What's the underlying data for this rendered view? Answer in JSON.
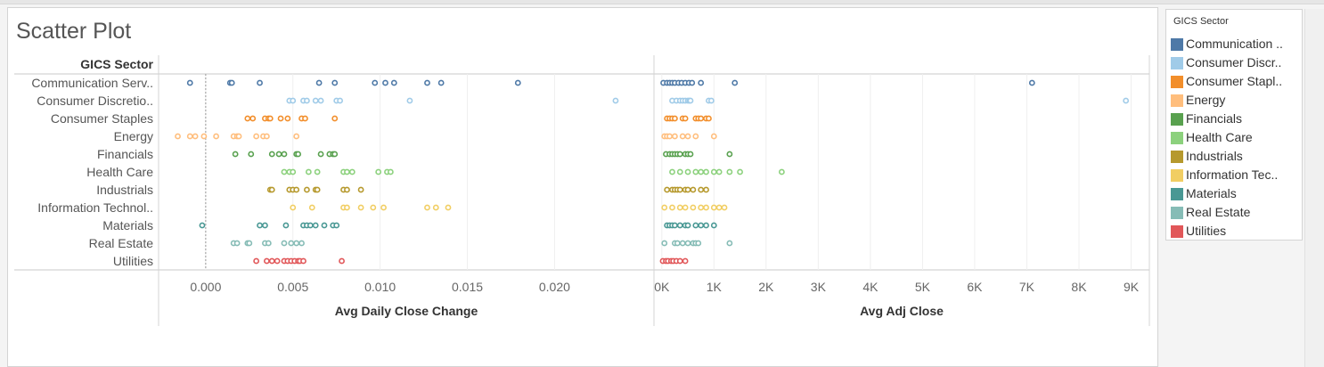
{
  "title": "Scatter Plot",
  "row_header": "GICS Sector",
  "legend": {
    "title": "GICS Sector",
    "items": [
      {
        "label": "Communication ..",
        "color": "#4e79a7"
      },
      {
        "label": "Consumer Discr..",
        "color": "#a0cbe8"
      },
      {
        "label": "Consumer Stapl..",
        "color": "#f28e2b"
      },
      {
        "label": "Energy",
        "color": "#ffbe7d"
      },
      {
        "label": "Financials",
        "color": "#59a14f"
      },
      {
        "label": "Health Care",
        "color": "#8cd17d"
      },
      {
        "label": "Industrials",
        "color": "#b6992d"
      },
      {
        "label": "Information Tec..",
        "color": "#f1ce63"
      },
      {
        "label": "Materials",
        "color": "#499894"
      },
      {
        "label": "Real Estate",
        "color": "#86bcb6"
      },
      {
        "label": "Utilities",
        "color": "#e15759"
      }
    ]
  },
  "chart_data": {
    "type": "scatter",
    "title": "Scatter Plot",
    "categories": [
      "Communication Serv..",
      "Consumer Discretio..",
      "Consumer Staples",
      "Energy",
      "Financials",
      "Health Care",
      "Industrials",
      "Information Technol..",
      "Materials",
      "Real Estate",
      "Utilities"
    ],
    "category_colors": [
      "#4e79a7",
      "#a0cbe8",
      "#f28e2b",
      "#ffbe7d",
      "#59a14f",
      "#8cd17d",
      "#b6992d",
      "#f1ce63",
      "#499894",
      "#86bcb6",
      "#e15759"
    ],
    "panels": [
      {
        "xlabel": "Avg Daily Close Change",
        "xlim": [
          -0.0027,
          0.0257
        ],
        "ticks": [
          0,
          0.005,
          0.01,
          0.015,
          0.02
        ],
        "tick_labels": [
          "0.000",
          "0.005",
          "0.010",
          "0.015",
          "0.020"
        ],
        "zero_line": true,
        "values": [
          [
            -0.0009,
            0.0014,
            0.0015,
            0.0031,
            0.0065,
            0.0074,
            0.0097,
            0.0103,
            0.0108,
            0.0127,
            0.0135,
            0.0179
          ],
          [
            0.0048,
            0.005,
            0.0056,
            0.0058,
            0.0063,
            0.0066,
            0.0075,
            0.0077,
            0.0117,
            0.0235
          ],
          [
            0.0024,
            0.0027,
            0.0034,
            0.0036,
            0.0037,
            0.0043,
            0.0047,
            0.0055,
            0.0057,
            0.0074
          ],
          [
            -0.0016,
            -0.0009,
            -0.0006,
            -0.0001,
            0.0006,
            0.0016,
            0.0018,
            0.0019,
            0.0029,
            0.0033,
            0.0035,
            0.0052
          ],
          [
            0.0017,
            0.0026,
            0.0038,
            0.0042,
            0.0045,
            0.0052,
            0.0053,
            0.0066,
            0.0071,
            0.0073,
            0.0074
          ],
          [
            0.0045,
            0.0048,
            0.005,
            0.0059,
            0.0064,
            0.0079,
            0.0081,
            0.0084,
            0.0099,
            0.0104,
            0.0106
          ],
          [
            0.0037,
            0.0038,
            0.0048,
            0.005,
            0.0052,
            0.0058,
            0.0063,
            0.0064,
            0.0079,
            0.0081,
            0.0089
          ],
          [
            0.005,
            0.0061,
            0.0079,
            0.0081,
            0.0089,
            0.0096,
            0.0102,
            0.0127,
            0.0132,
            0.0139
          ],
          [
            -0.0002,
            0.0031,
            0.0034,
            0.0046,
            0.0056,
            0.0058,
            0.006,
            0.0063,
            0.0068,
            0.0073,
            0.0075
          ],
          [
            0.0016,
            0.0018,
            0.0024,
            0.0025,
            0.0034,
            0.0036,
            0.0045,
            0.0049,
            0.0052,
            0.0055
          ],
          [
            0.0029,
            0.0035,
            0.0038,
            0.0041,
            0.0045,
            0.0047,
            0.0049,
            0.0051,
            0.0053,
            0.0054,
            0.0056,
            0.0078
          ]
        ]
      },
      {
        "xlabel": "Avg Adj Close",
        "xlim": [
          -150,
          9350
        ],
        "ticks": [
          0,
          1000,
          2000,
          3000,
          4000,
          5000,
          6000,
          7000,
          8000,
          9000
        ],
        "tick_labels": [
          "0K",
          "1K",
          "2K",
          "3K",
          "4K",
          "5K",
          "6K",
          "7K",
          "8K",
          "9K"
        ],
        "zero_line": false,
        "values": [
          [
            30,
            100,
            150,
            200,
            250,
            320,
            380,
            450,
            520,
            580,
            750,
            1400,
            7100
          ],
          [
            200,
            280,
            350,
            400,
            450,
            500,
            530,
            550,
            900,
            950,
            8900
          ],
          [
            100,
            150,
            200,
            250,
            400,
            450,
            650,
            700,
            750,
            850,
            900
          ],
          [
            50,
            100,
            150,
            250,
            400,
            500,
            650,
            1000
          ],
          [
            80,
            150,
            200,
            250,
            300,
            350,
            450,
            500,
            550,
            1300
          ],
          [
            200,
            350,
            500,
            650,
            750,
            850,
            1000,
            1100,
            1300,
            1500,
            2300
          ],
          [
            100,
            200,
            250,
            300,
            350,
            450,
            500,
            600,
            750,
            850
          ],
          [
            50,
            200,
            350,
            450,
            600,
            750,
            850,
            1000,
            1100,
            1200
          ],
          [
            100,
            150,
            200,
            250,
            350,
            450,
            500,
            650,
            750,
            850,
            1000
          ],
          [
            50,
            250,
            300,
            400,
            500,
            600,
            650,
            700,
            1300
          ],
          [
            20,
            80,
            120,
            180,
            220,
            280,
            350,
            450
          ]
        ]
      }
    ]
  }
}
